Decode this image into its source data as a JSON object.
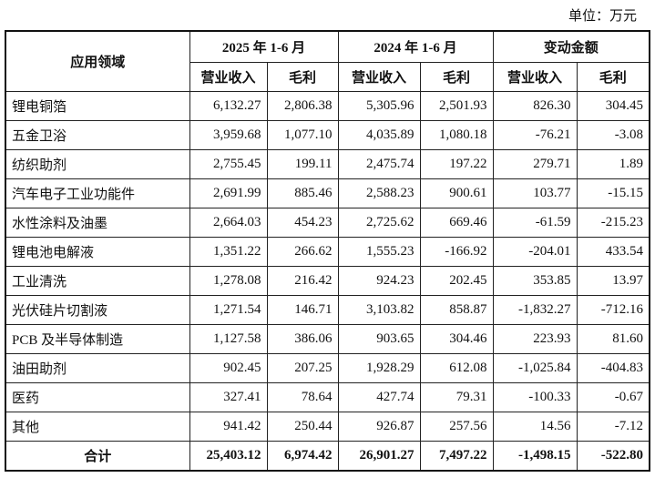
{
  "unit": "单位：万元",
  "header": {
    "field": "应用领域",
    "groups": [
      "2025 年 1-6 月",
      "2024 年 1-6 月",
      "变动金额"
    ],
    "sub": [
      "营业收入",
      "毛利",
      "营业收入",
      "毛利",
      "营业收入",
      "毛利"
    ]
  },
  "table": {
    "rows": [
      [
        "锂电铜箔",
        "6,132.27",
        "2,806.38",
        "5,305.96",
        "2,501.93",
        "826.30",
        "304.45"
      ],
      [
        "五金卫浴",
        "3,959.68",
        "1,077.10",
        "4,035.89",
        "1,080.18",
        "-76.21",
        "-3.08"
      ],
      [
        "纺织助剂",
        "2,755.45",
        "199.11",
        "2,475.74",
        "197.22",
        "279.71",
        "1.89"
      ],
      [
        "汽车电子工业功能件",
        "2,691.99",
        "885.46",
        "2,588.23",
        "900.61",
        "103.77",
        "-15.15"
      ],
      [
        "水性涂料及油墨",
        "2,664.03",
        "454.23",
        "2,725.62",
        "669.46",
        "-61.59",
        "-215.23"
      ],
      [
        "锂电池电解液",
        "1,351.22",
        "266.62",
        "1,555.23",
        "-166.92",
        "-204.01",
        "433.54"
      ],
      [
        "工业清洗",
        "1,278.08",
        "216.42",
        "924.23",
        "202.45",
        "353.85",
        "13.97"
      ],
      [
        "光伏硅片切割液",
        "1,271.54",
        "146.71",
        "3,103.82",
        "858.87",
        "-1,832.27",
        "-712.16"
      ],
      [
        "PCB 及半导体制造",
        "1,127.58",
        "386.06",
        "903.65",
        "304.46",
        "223.93",
        "81.60"
      ],
      [
        "油田助剂",
        "902.45",
        "207.25",
        "1,928.29",
        "612.08",
        "-1,025.84",
        "-404.83"
      ],
      [
        "医药",
        "327.41",
        "78.64",
        "427.74",
        "79.31",
        "-100.33",
        "-0.67"
      ],
      [
        "其他",
        "941.42",
        "250.44",
        "926.87",
        "257.56",
        "14.56",
        "-7.12"
      ]
    ],
    "total": [
      "合计",
      "25,403.12",
      "6,974.42",
      "26,901.27",
      "7,497.22",
      "-1,498.15",
      "-522.80"
    ]
  }
}
